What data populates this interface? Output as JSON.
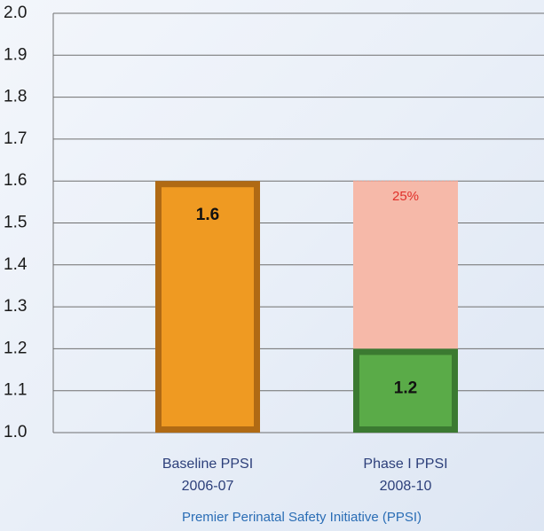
{
  "chart_data": {
    "type": "bar",
    "categories": [
      [
        "Baseline PPSI",
        "2006-07"
      ],
      [
        "Phase I PPSI",
        "2008-10"
      ]
    ],
    "values": [
      1.6,
      1.2
    ],
    "colors": [
      "#ef9a22",
      "#5aab48"
    ],
    "border_colors": [
      "#b06a14",
      "#3b7a31"
    ],
    "reduction": {
      "values": [
        null,
        0.4
      ],
      "color": "#f6b9a9",
      "label": "25%",
      "label_color": "#e0302a"
    },
    "x_label": "Premier Perinatal Safety Initiative (PPSI)",
    "ylim": [
      1.0,
      2.0
    ],
    "yticks": [
      {
        "value": 1.0,
        "label": "1.0"
      },
      1.1,
      1.2,
      1.3,
      1.4,
      1.5,
      1.6,
      1.7,
      1.8,
      1.9,
      {
        "value": 2.0,
        "label": "2.0"
      }
    ],
    "grid": true
  }
}
